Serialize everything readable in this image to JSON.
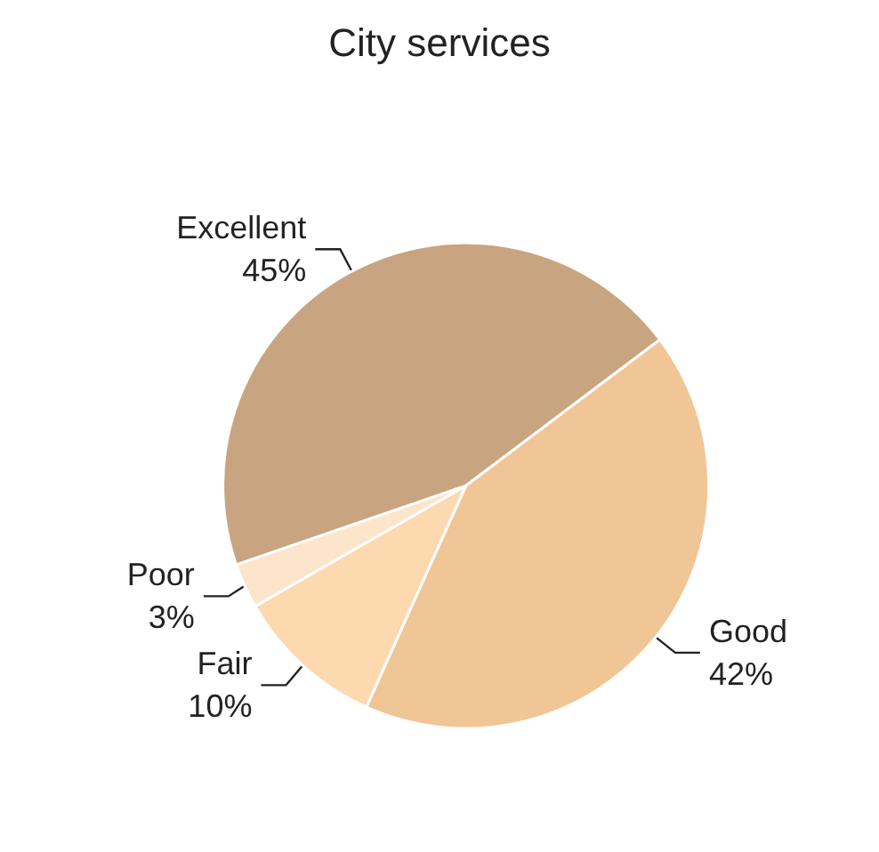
{
  "chart_data": {
    "type": "pie",
    "title": "City services",
    "categories": [
      "Good",
      "Fair",
      "Poor",
      "Excellent"
    ],
    "values": [
      42,
      10,
      3,
      45
    ],
    "value_labels": [
      "42%",
      "10%",
      "3%",
      "45%"
    ],
    "colors": [
      "#f0c697",
      "#fdd9b0",
      "#fde5cc",
      "#c8a580"
    ],
    "legend": false
  }
}
